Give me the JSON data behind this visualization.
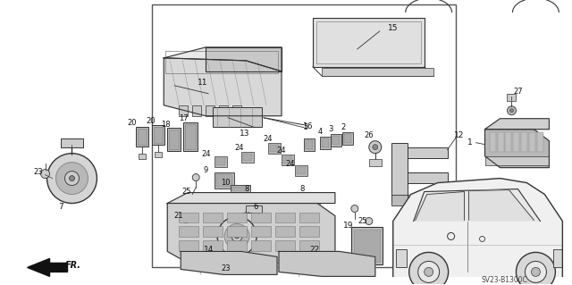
{
  "bg_color": "#ffffff",
  "diagram_code": "SV23-B1300C",
  "fig_width": 6.4,
  "fig_height": 3.19,
  "dpi": 100,
  "lc": "#333333"
}
